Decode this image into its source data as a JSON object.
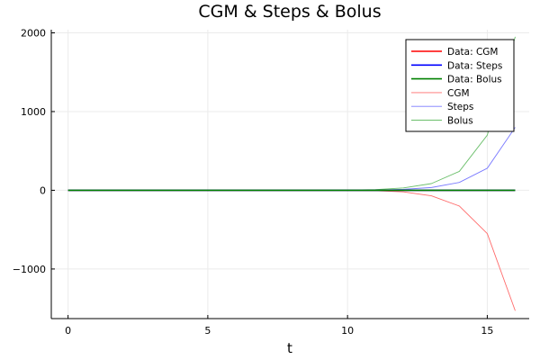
{
  "chart_data": {
    "type": "line",
    "title": "CGM & Steps & Bolus",
    "xlabel": "t",
    "ylabel": "",
    "xlim": [
      -0.6,
      16.5
    ],
    "ylim": [
      -1630,
      2040
    ],
    "xticks": [
      0,
      5,
      10,
      15
    ],
    "yticks": [
      -1000,
      0,
      1000,
      2000
    ],
    "xtick_labels": [
      "0",
      "5",
      "10",
      "15"
    ],
    "ytick_labels": [
      "−1000",
      "0",
      "1000",
      "2000"
    ],
    "grid": true,
    "legend_position": "top-right",
    "x": [
      0,
      1,
      2,
      3,
      4,
      5,
      6,
      7,
      8,
      9,
      10,
      11,
      12,
      13,
      14,
      15,
      16
    ],
    "series": [
      {
        "name": "Data: CGM",
        "color": "#ff0000",
        "style": "thick",
        "values": [
          0,
          0,
          0,
          0,
          0,
          0,
          0,
          0,
          0,
          0,
          0,
          0,
          0,
          0,
          0,
          0,
          0
        ]
      },
      {
        "name": "Data: Steps",
        "color": "#0000ff",
        "style": "thick",
        "values": [
          0,
          0,
          0,
          0,
          0,
          0,
          0,
          0,
          0,
          0,
          0,
          0,
          0,
          0,
          0,
          0,
          0
        ]
      },
      {
        "name": "Data: Bolus",
        "color": "#008000",
        "style": "thick",
        "values": [
          0,
          0,
          0,
          0,
          0,
          0,
          0,
          0,
          0,
          0,
          0,
          0,
          0,
          0,
          0,
          0,
          0
        ]
      },
      {
        "name": "CGM",
        "color": "#ff6b6b",
        "style": "thin",
        "values": [
          0,
          0,
          0,
          0,
          0,
          0,
          0,
          0,
          0,
          0,
          -1,
          -5,
          -20,
          -70,
          -200,
          -550,
          -1530
        ]
      },
      {
        "name": "Steps",
        "color": "#7b7bff",
        "style": "thin",
        "values": [
          0,
          0,
          0,
          0,
          0,
          0,
          0,
          0,
          0,
          0,
          1,
          4,
          12,
          35,
          100,
          280,
          800
        ]
      },
      {
        "name": "Bolus",
        "color": "#6bbf6b",
        "style": "thin",
        "values": [
          0,
          0,
          0,
          0,
          0,
          0,
          0,
          0,
          0,
          0,
          2,
          8,
          30,
          85,
          240,
          700,
          1950
        ]
      }
    ]
  }
}
